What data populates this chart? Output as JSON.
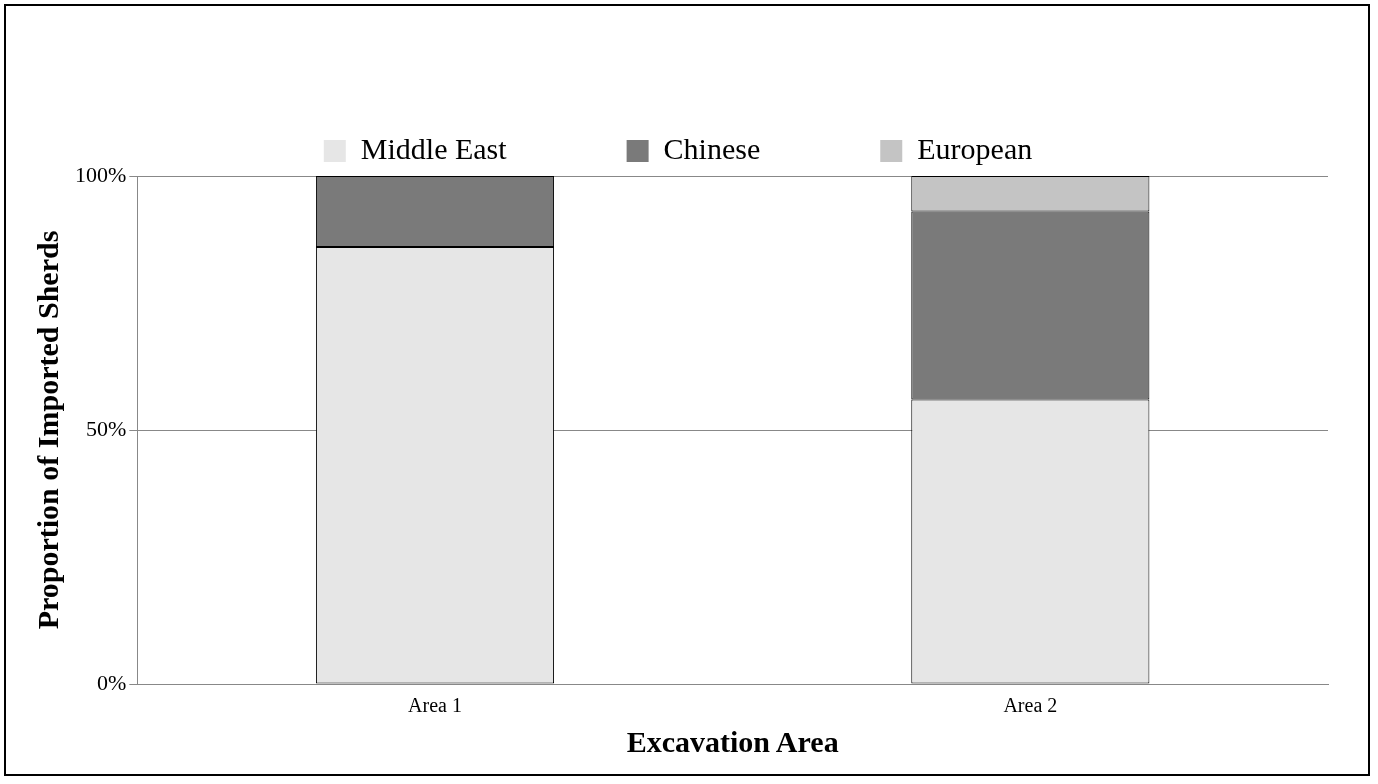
{
  "chart_data": {
    "type": "bar",
    "xlabel": "Excavation Area",
    "ylabel": "Proportion of Imported Sherds",
    "categories": [
      "Area 1",
      "Area 2"
    ],
    "stacked": true,
    "series": [
      {
        "name": "Middle East",
        "color": "#e6e6e6",
        "values": [
          86,
          56
        ]
      },
      {
        "name": "Chinese",
        "color": "#7a7a7a",
        "values": [
          14,
          37
        ]
      },
      {
        "name": "European",
        "color": "#c4c4c4",
        "values": [
          null,
          7
        ]
      }
    ],
    "ylim": [
      0,
      100
    ],
    "yticks": [
      {
        "value": 0,
        "label": "0%"
      },
      {
        "value": 50,
        "label": "50%"
      },
      {
        "value": 100,
        "label": "100%"
      }
    ],
    "grid": "y",
    "legend": "top"
  }
}
